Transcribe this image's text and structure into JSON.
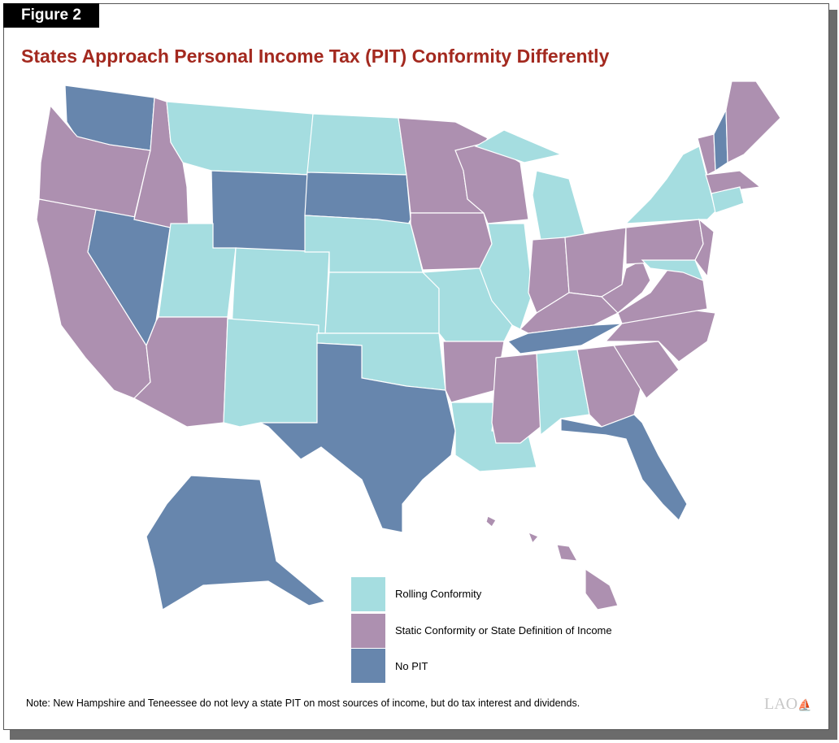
{
  "figure_label": "Figure 2",
  "title": "States Approach Personal Income Tax (PIT) Conformity Differently",
  "colors": {
    "rolling": "#a5dde0",
    "static": "#ad90b0",
    "none": "#6786ad",
    "title": "#a3291f"
  },
  "legend": [
    {
      "key": "rolling",
      "label": "Rolling Conformity"
    },
    {
      "key": "static",
      "label": "Static Conformity or State Definition of Income"
    },
    {
      "key": "none",
      "label": "No PIT"
    }
  ],
  "states": {
    "WA": "none",
    "OR": "static",
    "CA": "static",
    "NV": "none",
    "ID": "static",
    "MT": "rolling",
    "WY": "none",
    "UT": "rolling",
    "CO": "rolling",
    "AZ": "static",
    "NM": "rolling",
    "ND": "rolling",
    "SD": "none",
    "NE": "rolling",
    "KS": "rolling",
    "OK": "rolling",
    "TX": "none",
    "MN": "static",
    "IA": "static",
    "MO": "rolling",
    "AR": "static",
    "LA": "rolling",
    "WI": "static",
    "IL": "rolling",
    "MI": "rolling",
    "IN": "static",
    "OH": "static",
    "KY": "static",
    "TN": "none",
    "MS": "static",
    "AL": "rolling",
    "GA": "static",
    "FL": "none",
    "SC": "static",
    "NC": "static",
    "VA": "static",
    "WV": "static",
    "PA": "static",
    "NY": "rolling",
    "NJ": "static",
    "MD": "rolling",
    "VT": "static",
    "NH": "none",
    "ME": "static",
    "MA": "static",
    "CT": "rolling",
    "AK": "none",
    "HI": "static"
  },
  "note": "Note: New Hampshire and Teneessee do not levy a state PIT on most sources of income, but do tax interest and dividends.",
  "logo": "LAO"
}
